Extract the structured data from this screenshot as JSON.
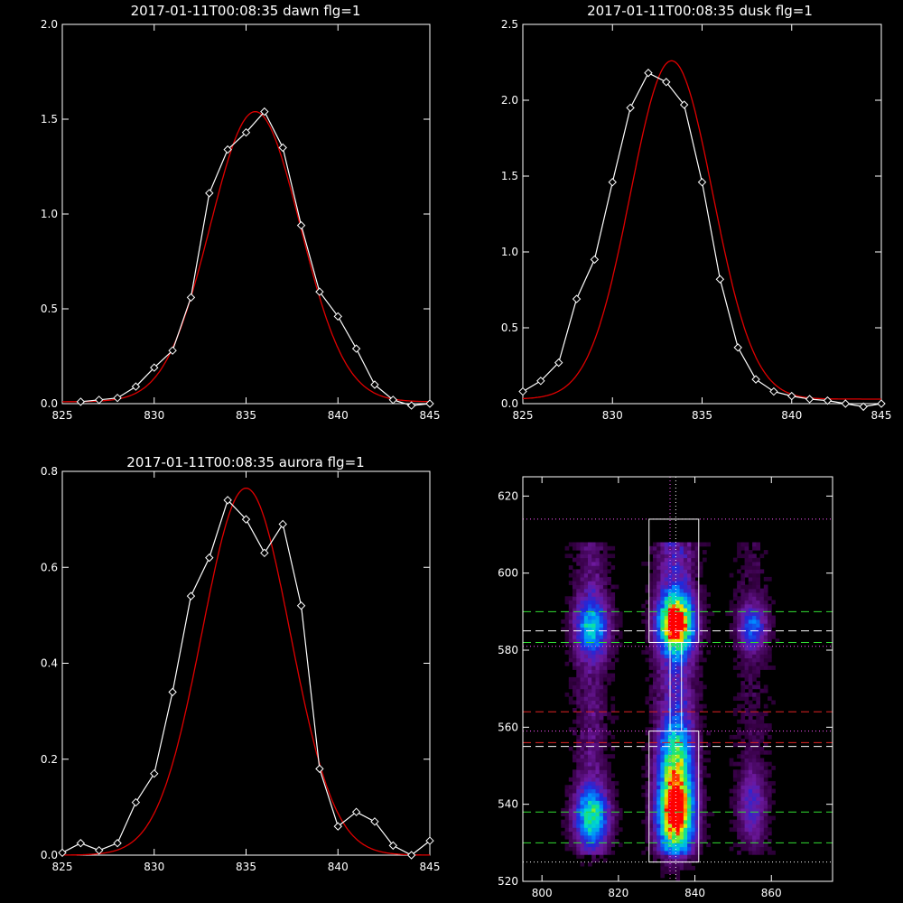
{
  "chart_data": [
    {
      "type": "line",
      "title": "2017-01-11T00:08:35 dawn flg=1",
      "xlim": [
        825,
        845
      ],
      "ylim": [
        0,
        2.0
      ],
      "xticks": [
        825,
        830,
        835,
        840,
        845
      ],
      "yticks": [
        0.0,
        0.5,
        1.0,
        1.5,
        2.0
      ],
      "ytick_labels": [
        "0.0",
        "0.5",
        "1.0",
        "1.5",
        "2.0"
      ],
      "series": [
        {
          "color": "#ffffff",
          "markers": "diamond",
          "x": [
            826,
            827,
            828,
            829,
            830,
            831,
            832,
            833,
            834,
            835,
            836,
            837,
            838,
            839,
            840,
            841,
            842,
            843,
            844,
            845
          ],
          "y": [
            0.01,
            0.02,
            0.03,
            0.09,
            0.19,
            0.28,
            0.56,
            1.11,
            1.34,
            1.43,
            1.54,
            1.35,
            0.94,
            0.59,
            0.46,
            0.29,
            0.1,
            0.02,
            -0.01,
            0.0
          ]
        },
        {
          "color": "#e00000",
          "fit": "gaussian",
          "amplitude": 1.53,
          "center": 835.5,
          "sigma": 2.45,
          "offset": 0.01
        }
      ]
    },
    {
      "type": "line",
      "title": "2017-01-11T00:08:35 dusk flg=1",
      "xlim": [
        825,
        845
      ],
      "ylim": [
        0,
        2.5
      ],
      "xticks": [
        825,
        830,
        835,
        840,
        845
      ],
      "yticks": [
        0.0,
        0.5,
        1.0,
        1.5,
        2.0,
        2.5
      ],
      "ytick_labels": [
        "0.0",
        "0.5",
        "1.0",
        "1.5",
        "2.0",
        "2.5"
      ],
      "series": [
        {
          "color": "#ffffff",
          "markers": "diamond",
          "x": [
            825,
            826,
            827,
            828,
            829,
            830,
            831,
            832,
            833,
            834,
            835,
            836,
            837,
            838,
            839,
            840,
            841,
            842,
            843,
            844,
            845
          ],
          "y": [
            0.08,
            0.15,
            0.27,
            0.69,
            0.95,
            1.46,
            1.95,
            2.18,
            2.12,
            1.97,
            1.46,
            0.82,
            0.37,
            0.16,
            0.08,
            0.05,
            0.03,
            0.02,
            0.0,
            -0.02,
            0.0
          ]
        },
        {
          "color": "#e00000",
          "fit": "gaussian",
          "amplitude": 2.23,
          "center": 833.3,
          "sigma": 2.3,
          "offset": 0.03
        }
      ]
    },
    {
      "type": "line",
      "title": "2017-01-11T00:08:35 aurora flg=1",
      "xlim": [
        825,
        845
      ],
      "ylim": [
        0,
        0.8
      ],
      "xticks": [
        825,
        830,
        835,
        840,
        845
      ],
      "yticks": [
        0.0,
        0.2,
        0.4,
        0.6,
        0.8
      ],
      "ytick_labels": [
        "0.0",
        "0.2",
        "0.4",
        "0.6",
        "0.8"
      ],
      "series": [
        {
          "color": "#ffffff",
          "markers": "diamond",
          "x": [
            825,
            826,
            827,
            828,
            829,
            830,
            831,
            832,
            833,
            834,
            835,
            836,
            837,
            838,
            839,
            840,
            841,
            842,
            843,
            844,
            845
          ],
          "y": [
            0.005,
            0.025,
            0.01,
            0.025,
            0.11,
            0.17,
            0.34,
            0.54,
            0.62,
            0.74,
            0.7,
            0.63,
            0.69,
            0.52,
            0.18,
            0.06,
            0.09,
            0.07,
            0.02,
            0.0,
            0.03
          ]
        },
        {
          "color": "#e00000",
          "fit": "gaussian",
          "amplitude": 0.765,
          "center": 835.0,
          "sigma": 2.4,
          "offset": 0.0
        }
      ]
    },
    {
      "type": "heatmap",
      "title": "",
      "xlim": [
        795,
        876
      ],
      "ylim": [
        520,
        625
      ],
      "xticks": [
        800,
        820,
        840,
        860
      ],
      "yticks": [
        520,
        540,
        560,
        580,
        600,
        620
      ],
      "colormap": "rainbow",
      "emission_columns": [
        {
          "x_center": 813,
          "x_halfwidth": 3.0,
          "strength": 0.55
        },
        {
          "x_center": 835,
          "x_halfwidth": 3.5,
          "strength": 1.0
        },
        {
          "x_center": 855,
          "x_halfwidth": 3.0,
          "strength": 0.28
        }
      ],
      "hotspots": [
        {
          "x": 813,
          "y": 586,
          "sx": 3,
          "sy": 5,
          "value": 0.45
        },
        {
          "x": 813,
          "y": 537,
          "sx": 3,
          "sy": 5,
          "value": 0.55
        },
        {
          "x": 835,
          "y": 587,
          "sx": 3,
          "sy": 5,
          "value": 1.0
        },
        {
          "x": 835,
          "y": 537,
          "sx": 3,
          "sy": 6,
          "value": 0.85
        },
        {
          "x": 835,
          "y": 550,
          "sx": 3,
          "sy": 8,
          "value": 0.55
        },
        {
          "x": 855,
          "y": 586,
          "sx": 2.5,
          "sy": 4,
          "value": 0.35
        },
        {
          "x": 855,
          "y": 540,
          "sx": 2.5,
          "sy": 6,
          "value": 0.2
        }
      ],
      "boxes": [
        {
          "x0": 828,
          "x1": 841,
          "y0": 582,
          "y1": 614,
          "color": "#ffffff"
        },
        {
          "x0": 828,
          "x1": 841,
          "y0": 525,
          "y1": 559,
          "color": "#ffffff"
        },
        {
          "x0": 833.5,
          "x1": 836.5,
          "y0": 559,
          "y1": 582,
          "color": "#ffffff"
        }
      ],
      "vertical_lines": [
        {
          "x": 833.5,
          "color": "#ff55ff",
          "style": "dotted"
        },
        {
          "x": 835,
          "color": "#ffffff",
          "style": "dotted"
        }
      ],
      "horizontal_lines": [
        {
          "y": 614,
          "color": "#ff55ff",
          "style": "dotted"
        },
        {
          "y": 590,
          "color": "#33dd33",
          "style": "dashed"
        },
        {
          "y": 585,
          "color": "#ffffff",
          "style": "dashed"
        },
        {
          "y": 582,
          "color": "#33dd33",
          "style": "dashed"
        },
        {
          "y": 581,
          "color": "#ff55ff",
          "style": "dotted"
        },
        {
          "y": 564,
          "color": "#dd2222",
          "style": "dashed"
        },
        {
          "y": 559,
          "color": "#ff55ff",
          "style": "dotted"
        },
        {
          "y": 556,
          "color": "#dd2222",
          "style": "dashed"
        },
        {
          "y": 555,
          "color": "#ffffff",
          "style": "dashed"
        },
        {
          "y": 538,
          "color": "#33dd33",
          "style": "dashed"
        },
        {
          "y": 530,
          "color": "#33dd33",
          "style": "dashed"
        },
        {
          "y": 525,
          "color": "#ffffff",
          "style": "dotted"
        }
      ]
    }
  ]
}
